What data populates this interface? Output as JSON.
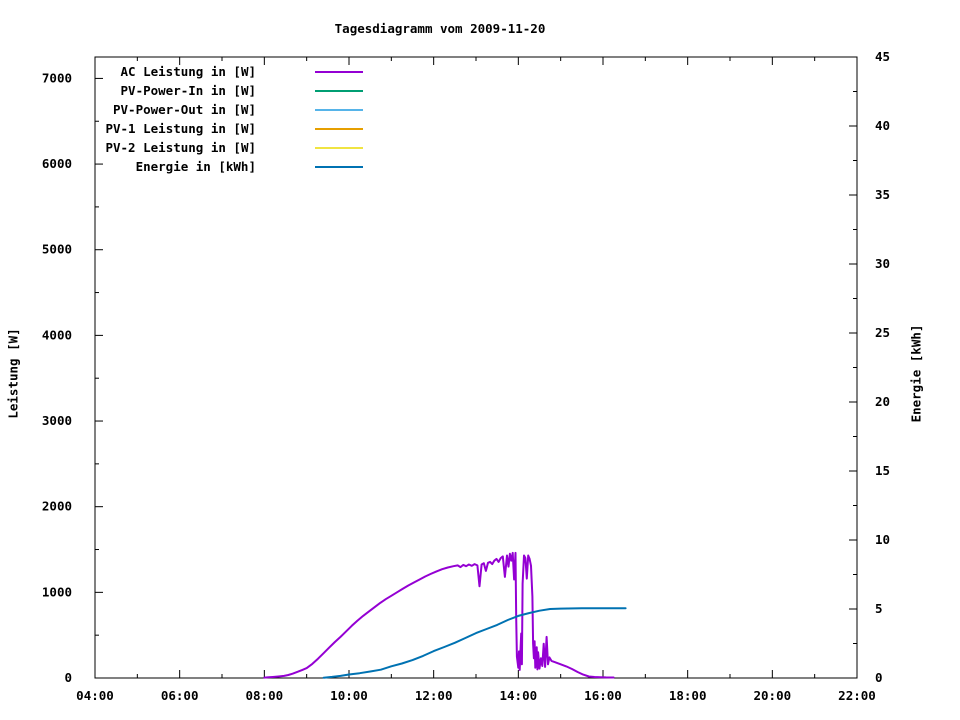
{
  "chart_data": {
    "type": "line",
    "title": "Tagesdiagramm vom 2009-11-20",
    "xlabel": "",
    "ylabel": "Leistung [W]",
    "y2label": "Energie [kWh]",
    "grid": false,
    "legend_position": "top-left-inside",
    "axis_color": "#000000",
    "x_axis": {
      "min": "04:00",
      "max": "22:00",
      "major": [
        "04:00",
        "06:00",
        "08:00",
        "10:00",
        "12:00",
        "14:00",
        "16:00",
        "18:00",
        "20:00",
        "22:00"
      ],
      "minor": [
        "05:00",
        "07:00",
        "09:00",
        "11:00",
        "13:00",
        "15:00",
        "17:00",
        "19:00",
        "21:00"
      ]
    },
    "y_axis_left": {
      "label": "Leistung [W]",
      "min": 0,
      "max_tick": 7000,
      "scale_max": 7250,
      "major": [
        0,
        1000,
        2000,
        3000,
        4000,
        5000,
        6000,
        7000
      ],
      "minor": [
        500,
        1500,
        2500,
        3500,
        4500,
        5500,
        6500
      ]
    },
    "y_axis_right": {
      "label": "Energie [kWh]",
      "min": 0,
      "max": 45,
      "major": [
        0,
        5,
        10,
        15,
        20,
        25,
        30,
        35,
        40,
        45
      ],
      "minor": [
        2.5,
        7.5,
        12.5,
        17.5,
        22.5,
        27.5,
        32.5,
        37.5,
        42.5
      ]
    },
    "legend": [
      {
        "label": "AC Leistung in [W]",
        "color": "#9400d3"
      },
      {
        "label": "PV-Power-In in [W]",
        "color": "#009e73"
      },
      {
        "label": "PV-Power-Out in [W]",
        "color": "#56b4e9"
      },
      {
        "label": "PV-1 Leistung in [W]",
        "color": "#e69f00"
      },
      {
        "label": "PV-2 Leistung in [W]",
        "color": "#f0e442"
      },
      {
        "label": "Energie in [kWh]",
        "color": "#0072b2"
      }
    ],
    "series": [
      {
        "name": "AC Leistung in [W]",
        "axis": "left",
        "color": "#9400d3",
        "points": [
          [
            "08:00",
            5
          ],
          [
            "08:06",
            8
          ],
          [
            "08:12",
            12
          ],
          [
            "08:20",
            18
          ],
          [
            "08:28",
            25
          ],
          [
            "08:34",
            35
          ],
          [
            "08:40",
            50
          ],
          [
            "08:48",
            75
          ],
          [
            "08:54",
            95
          ],
          [
            "09:00",
            115
          ],
          [
            "09:08",
            165
          ],
          [
            "09:16",
            225
          ],
          [
            "09:24",
            290
          ],
          [
            "09:32",
            355
          ],
          [
            "09:40",
            420
          ],
          [
            "09:48",
            480
          ],
          [
            "09:56",
            545
          ],
          [
            "10:04",
            610
          ],
          [
            "10:12",
            670
          ],
          [
            "10:20",
            725
          ],
          [
            "10:28",
            775
          ],
          [
            "10:36",
            825
          ],
          [
            "10:44",
            875
          ],
          [
            "10:52",
            920
          ],
          [
            "11:00",
            960
          ],
          [
            "11:08",
            1000
          ],
          [
            "11:16",
            1040
          ],
          [
            "11:24",
            1080
          ],
          [
            "11:32",
            1115
          ],
          [
            "11:40",
            1150
          ],
          [
            "11:48",
            1185
          ],
          [
            "11:56",
            1215
          ],
          [
            "12:04",
            1245
          ],
          [
            "12:12",
            1270
          ],
          [
            "12:20",
            1290
          ],
          [
            "12:28",
            1305
          ],
          [
            "12:34",
            1315
          ],
          [
            "12:38",
            1295
          ],
          [
            "12:42",
            1320
          ],
          [
            "12:46",
            1305
          ],
          [
            "12:50",
            1325
          ],
          [
            "12:54",
            1310
          ],
          [
            "12:58",
            1330
          ],
          [
            "13:02",
            1315
          ],
          [
            "13:05",
            1070
          ],
          [
            "13:08",
            1325
          ],
          [
            "13:11",
            1340
          ],
          [
            "13:14",
            1250
          ],
          [
            "13:17",
            1345
          ],
          [
            "13:20",
            1355
          ],
          [
            "13:23",
            1330
          ],
          [
            "13:26",
            1370
          ],
          [
            "13:29",
            1390
          ],
          [
            "13:32",
            1355
          ],
          [
            "13:35",
            1400
          ],
          [
            "13:38",
            1420
          ],
          [
            "13:41",
            1180
          ],
          [
            "13:44",
            1430
          ],
          [
            "13:46",
            1300
          ],
          [
            "13:48",
            1450
          ],
          [
            "13:50",
            1370
          ],
          [
            "13:52",
            1460
          ],
          [
            "13:54",
            1150
          ],
          [
            "13:56",
            1460
          ],
          [
            "13:57",
            700
          ],
          [
            "13:58",
            250
          ],
          [
            "14:00",
            120
          ],
          [
            "14:01",
            310
          ],
          [
            "14:02",
            95
          ],
          [
            "14:04",
            520
          ],
          [
            "14:05",
            160
          ],
          [
            "14:06",
            1100
          ],
          [
            "14:08",
            1430
          ],
          [
            "14:10",
            1400
          ],
          [
            "14:12",
            1160
          ],
          [
            "14:14",
            1430
          ],
          [
            "14:16",
            1390
          ],
          [
            "14:18",
            1310
          ],
          [
            "14:20",
            950
          ],
          [
            "14:21",
            400
          ],
          [
            "14:22",
            230
          ],
          [
            "14:23",
            430
          ],
          [
            "14:24",
            120
          ],
          [
            "14:26",
            360
          ],
          [
            "14:27",
            100
          ],
          [
            "14:28",
            300
          ],
          [
            "14:30",
            110
          ],
          [
            "14:32",
            230
          ],
          [
            "14:34",
            140
          ],
          [
            "14:36",
            400
          ],
          [
            "14:38",
            130
          ],
          [
            "14:40",
            480
          ],
          [
            "14:42",
            160
          ],
          [
            "14:44",
            240
          ],
          [
            "14:47",
            200
          ],
          [
            "14:52",
            185
          ],
          [
            "15:00",
            160
          ],
          [
            "15:08",
            135
          ],
          [
            "15:16",
            105
          ],
          [
            "15:24",
            70
          ],
          [
            "15:32",
            40
          ],
          [
            "15:40",
            18
          ],
          [
            "15:48",
            12
          ],
          [
            "15:56",
            9
          ],
          [
            "16:04",
            7
          ],
          [
            "16:15",
            6
          ]
        ]
      },
      {
        "name": "PV-Power-In in [W]",
        "axis": "left",
        "color": "#009e73",
        "points": []
      },
      {
        "name": "PV-Power-Out in [W]",
        "axis": "left",
        "color": "#56b4e9",
        "points": []
      },
      {
        "name": "PV-1 Leistung in [W]",
        "axis": "left",
        "color": "#e69f00",
        "points": []
      },
      {
        "name": "PV-2 Leistung in [W]",
        "axis": "left",
        "color": "#f0e442",
        "points": []
      },
      {
        "name": "Energie in [kWh]",
        "axis": "right",
        "color": "#0072b2",
        "points": [
          [
            "09:24",
            0.02
          ],
          [
            "09:36",
            0.08
          ],
          [
            "09:48",
            0.15
          ],
          [
            "10:00",
            0.25
          ],
          [
            "10:15",
            0.35
          ],
          [
            "10:30",
            0.47
          ],
          [
            "10:45",
            0.6
          ],
          [
            "11:00",
            0.85
          ],
          [
            "11:15",
            1.05
          ],
          [
            "11:30",
            1.3
          ],
          [
            "11:45",
            1.6
          ],
          [
            "12:00",
            1.95
          ],
          [
            "12:15",
            2.25
          ],
          [
            "12:30",
            2.55
          ],
          [
            "12:45",
            2.9
          ],
          [
            "13:00",
            3.25
          ],
          [
            "13:15",
            3.55
          ],
          [
            "13:30",
            3.85
          ],
          [
            "13:45",
            4.2
          ],
          [
            "14:00",
            4.5
          ],
          [
            "14:15",
            4.7
          ],
          [
            "14:30",
            4.88
          ],
          [
            "14:45",
            5.0
          ],
          [
            "15:00",
            5.03
          ],
          [
            "15:30",
            5.05
          ],
          [
            "16:00",
            5.05
          ],
          [
            "16:32",
            5.05
          ]
        ]
      }
    ]
  }
}
